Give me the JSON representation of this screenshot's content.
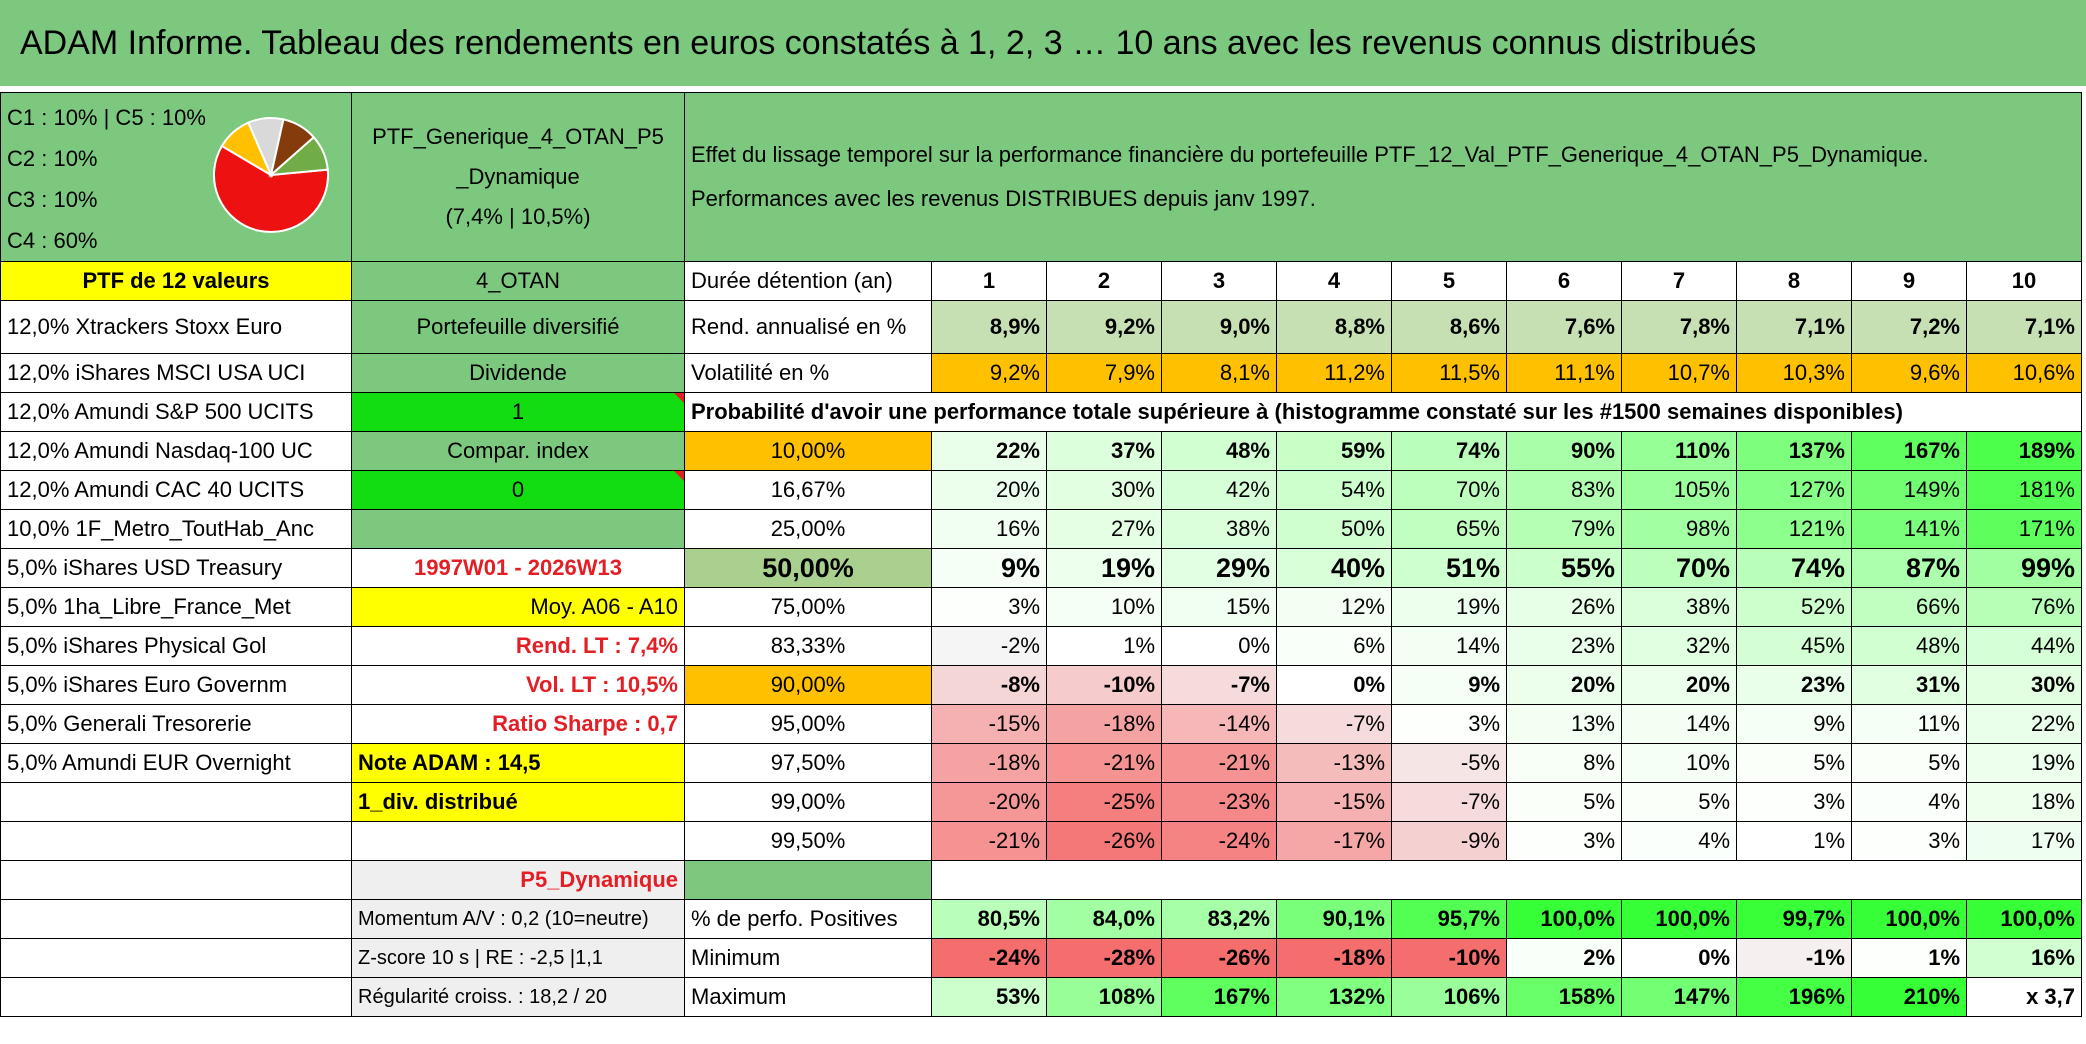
{
  "title": "ADAM Informe. Tableau des rendements en euros constatés à 1, 2, 3 … 10 ans avec les revenus connus distribués",
  "allocation": {
    "l1": "C1 : 10% | C5 : 10%",
    "l2": "C2 : 10%",
    "l3": "C3 : 10%",
    "l4": "C4 : 60%"
  },
  "pie": {
    "slices": [
      {
        "label": "C4",
        "value": 60,
        "color": "#ee1111"
      },
      {
        "label": "C1",
        "value": 10,
        "color": "#ffc000"
      },
      {
        "label": "C5",
        "value": 10,
        "color": "#d9d9d9"
      },
      {
        "label": "C2",
        "value": 10,
        "color": "#843c0c"
      },
      {
        "label": "C3",
        "value": 10,
        "color": "#70ad47"
      }
    ]
  },
  "portfolio": {
    "name_l1": "PTF_Generique_4_OTAN_P5",
    "name_l2": "_Dynamique",
    "perf": "(7,4% | 10,5%)"
  },
  "effet": {
    "l1": "Effet du lissage temporel sur la performance financière du portefeuille PTF_12_Val_PTF_Generique_4_OTAN_P5_Dynamique.",
    "l2": "Performances avec les revenus DISTRIBUES depuis janv 1997."
  },
  "ptf_label": "PTF de 12 valeurs",
  "otan": "4_OTAN",
  "duree_label": "Durée détention (an)",
  "years": [
    "1",
    "2",
    "3",
    "4",
    "5",
    "6",
    "7",
    "8",
    "9",
    "10"
  ],
  "holdings": [
    "12,0% Xtrackers Stoxx Euro",
    "12,0% iShares MSCI USA UCI",
    "12,0% Amundi S&P 500 UCITS",
    "12,0% Amundi Nasdaq-100 UC",
    "12,0% Amundi CAC 40 UCITS",
    "10,0% 1F_Metro_ToutHab_Anc",
    "5,0% iShares USD Treasury",
    "5,0% 1ha_Libre_France_Met",
    "5,0% iShares Physical Gol",
    "5,0% iShares Euro Governm",
    "5,0% Generali Tresorerie",
    "5,0% Amundi EUR Overnight"
  ],
  "side": {
    "diversifie": "Portefeuille diversifié",
    "dividende": "Dividende",
    "one": "1",
    "compar": "Compar. index",
    "zero": "0",
    "period": "1997W01 - 2026W13",
    "moy": "Moy. A06 - A10",
    "rend_lt": "Rend. LT : 7,4%",
    "vol_lt": "Vol. LT : 10,5%",
    "sharpe": "Ratio Sharpe : 0,7",
    "note": "Note ADAM : 14,5",
    "div": "1_div. distribué",
    "p5": "P5_Dynamique",
    "momentum": "Momentum A/V : 0,2 (10=neutre)",
    "zscore": "Z-score 10 s | RE : -2,5 |1,1",
    "regul": "Régularité croiss. : 18,2 / 20"
  },
  "rend_label": "Rend. annualisé en %",
  "rend": [
    "8,9%",
    "9,2%",
    "9,0%",
    "8,8%",
    "8,6%",
    "7,6%",
    "7,8%",
    "7,1%",
    "7,2%",
    "7,1%"
  ],
  "vol_label": "Volatilité en %",
  "vol": [
    "9,2%",
    "7,9%",
    "8,1%",
    "11,2%",
    "11,5%",
    "11,1%",
    "10,7%",
    "10,3%",
    "9,6%",
    "10,6%"
  ],
  "prob_label": "Probabilité d'avoir une performance totale supérieure à (histogramme constaté sur les #1500 semaines disponibles)",
  "quantiles": [
    {
      "q": "10,00%",
      "v": [
        "22%",
        "37%",
        "48%",
        "59%",
        "74%",
        "90%",
        "110%",
        "137%",
        "167%",
        "189%"
      ]
    },
    {
      "q": "16,67%",
      "v": [
        "20%",
        "30%",
        "42%",
        "54%",
        "70%",
        "83%",
        "105%",
        "127%",
        "149%",
        "181%"
      ]
    },
    {
      "q": "25,00%",
      "v": [
        "16%",
        "27%",
        "38%",
        "50%",
        "65%",
        "79%",
        "98%",
        "121%",
        "141%",
        "171%"
      ]
    },
    {
      "q": "50,00%",
      "v": [
        "9%",
        "19%",
        "29%",
        "40%",
        "51%",
        "55%",
        "70%",
        "74%",
        "87%",
        "99%"
      ]
    },
    {
      "q": "75,00%",
      "v": [
        "3%",
        "10%",
        "15%",
        "12%",
        "19%",
        "26%",
        "38%",
        "52%",
        "66%",
        "76%"
      ]
    },
    {
      "q": "83,33%",
      "v": [
        "-2%",
        "1%",
        "0%",
        "6%",
        "14%",
        "23%",
        "32%",
        "45%",
        "48%",
        "44%"
      ]
    },
    {
      "q": "90,00%",
      "v": [
        "-8%",
        "-10%",
        "-7%",
        "0%",
        "9%",
        "20%",
        "20%",
        "23%",
        "31%",
        "30%"
      ]
    },
    {
      "q": "95,00%",
      "v": [
        "-15%",
        "-18%",
        "-14%",
        "-7%",
        "3%",
        "13%",
        "14%",
        "9%",
        "11%",
        "22%"
      ]
    },
    {
      "q": "97,50%",
      "v": [
        "-18%",
        "-21%",
        "-21%",
        "-13%",
        "-5%",
        "8%",
        "10%",
        "5%",
        "5%",
        "19%"
      ]
    },
    {
      "q": "99,00%",
      "v": [
        "-20%",
        "-25%",
        "-23%",
        "-15%",
        "-7%",
        "5%",
        "5%",
        "3%",
        "4%",
        "18%"
      ]
    },
    {
      "q": "99,50%",
      "v": [
        "-21%",
        "-26%",
        "-24%",
        "-17%",
        "-9%",
        "3%",
        "4%",
        "1%",
        "3%",
        "17%"
      ]
    }
  ],
  "pos_label": "% de perfo. Positives",
  "pos": [
    "80,5%",
    "84,0%",
    "83,2%",
    "90,1%",
    "95,7%",
    "100,0%",
    "100,0%",
    "99,7%",
    "100,0%",
    "100,0%"
  ],
  "min_label": "Minimum",
  "min": [
    "-24%",
    "-28%",
    "-26%",
    "-18%",
    "-10%",
    "2%",
    "0%",
    "-1%",
    "1%",
    "16%"
  ],
  "max_label": "Maximum",
  "max": [
    "53%",
    "108%",
    "167%",
    "132%",
    "106%",
    "158%",
    "147%",
    "196%",
    "210%",
    "x 3,7"
  ],
  "colors": {
    "header_green": "#7dc87f",
    "bright_green": "#11dd11",
    "yellow": "#ffff00",
    "orange": "#ffc000",
    "light_green": "#c6e0b4",
    "red": "#e31e24"
  }
}
